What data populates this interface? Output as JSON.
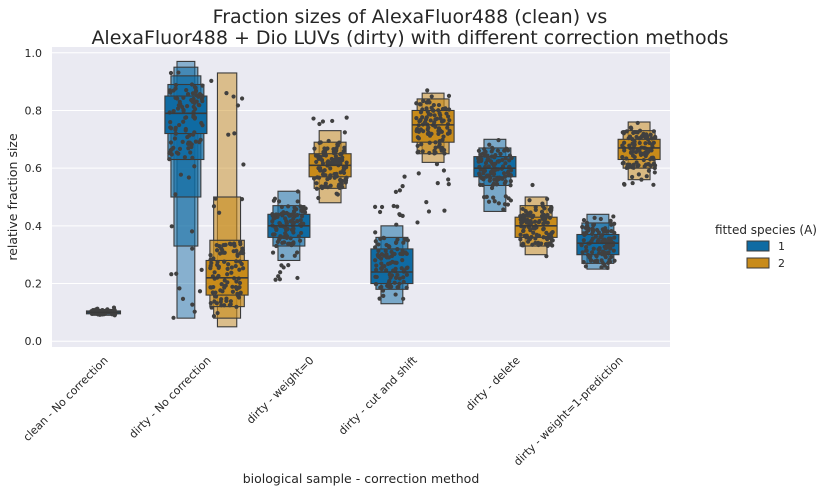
{
  "chart_data": {
    "type": "boxenplot",
    "title": [
      "Fraction sizes of AlexaFluor488 (clean) vs",
      "AlexaFluor488 + Dio LUVs (dirty) with different correction methods"
    ],
    "xlabel": "biological sample - correction method",
    "ylabel": "relative fraction size",
    "ylim": [
      -0.02,
      1.02
    ],
    "yticks": [
      "0.0",
      "0.2",
      "0.4",
      "0.6",
      "0.8",
      "1.0"
    ],
    "grid": true,
    "categories": [
      "clean - No correction",
      "dirty - No correction",
      "dirty - weight=0",
      "dirty - cut and shift",
      "dirty - delete",
      "dirty - weight=1-prediction"
    ],
    "legend": {
      "title": "fitted species (A)",
      "placement": "right",
      "entries": [
        "1",
        "2"
      ]
    },
    "colors": {
      "1": "#0f6ba3",
      "2": "#c88b1a",
      "points": "#404040",
      "background": "#eaeaf2"
    },
    "series": [
      {
        "name": "1",
        "boxes": [
          {
            "category": 0,
            "median": 0.1,
            "levels": [
              [
                0.095,
                0.105
              ],
              [
                0.09,
                0.11
              ]
            ],
            "points": [
              0.09,
              0.12
            ]
          },
          {
            "category": 1,
            "median": 0.79,
            "levels": [
              [
                0.72,
                0.85
              ],
              [
                0.63,
                0.89
              ],
              [
                0.5,
                0.92
              ],
              [
                0.33,
                0.95
              ],
              [
                0.08,
                0.97
              ]
            ],
            "points": [
              0.08,
              0.97
            ]
          },
          {
            "category": 2,
            "median": 0.4,
            "levels": [
              [
                0.36,
                0.44
              ],
              [
                0.33,
                0.47
              ],
              [
                0.28,
                0.52
              ]
            ],
            "points": [
              0.2,
              0.55
            ]
          },
          {
            "category": 3,
            "median": 0.24,
            "levels": [
              [
                0.2,
                0.32
              ],
              [
                0.18,
                0.36
              ],
              [
                0.13,
                0.4
              ]
            ],
            "points": [
              0.13,
              0.59
            ]
          },
          {
            "category": 4,
            "median": 0.6,
            "levels": [
              [
                0.57,
                0.64
              ],
              [
                0.54,
                0.67
              ],
              [
                0.45,
                0.7
              ]
            ],
            "points": [
              0.45,
              0.7
            ]
          },
          {
            "category": 5,
            "median": 0.34,
            "levels": [
              [
                0.3,
                0.37
              ],
              [
                0.27,
                0.41
              ],
              [
                0.25,
                0.44
              ]
            ],
            "points": [
              0.25,
              0.44
            ]
          }
        ]
      },
      {
        "name": "2",
        "boxes": [
          {
            "category": 1,
            "median": 0.22,
            "levels": [
              [
                0.16,
                0.28
              ],
              [
                0.12,
                0.35
              ],
              [
                0.08,
                0.5
              ],
              [
                0.05,
                0.93
              ]
            ],
            "points": [
              0.03,
              0.93
            ]
          },
          {
            "category": 2,
            "median": 0.61,
            "levels": [
              [
                0.57,
                0.65
              ],
              [
                0.53,
                0.69
              ],
              [
                0.48,
                0.73
              ]
            ],
            "points": [
              0.46,
              0.8
            ]
          },
          {
            "category": 3,
            "median": 0.75,
            "levels": [
              [
                0.69,
                0.8
              ],
              [
                0.65,
                0.84
              ],
              [
                0.62,
                0.86
              ]
            ],
            "points": [
              0.41,
              0.87
            ]
          },
          {
            "category": 4,
            "median": 0.4,
            "levels": [
              [
                0.36,
                0.43
              ],
              [
                0.33,
                0.47
              ],
              [
                0.3,
                0.5
              ]
            ],
            "points": [
              0.29,
              0.55
            ]
          },
          {
            "category": 5,
            "median": 0.67,
            "levels": [
              [
                0.63,
                0.7
              ],
              [
                0.6,
                0.73
              ],
              [
                0.56,
                0.76
              ]
            ],
            "points": [
              0.54,
              0.76
            ]
          }
        ]
      }
    ]
  }
}
